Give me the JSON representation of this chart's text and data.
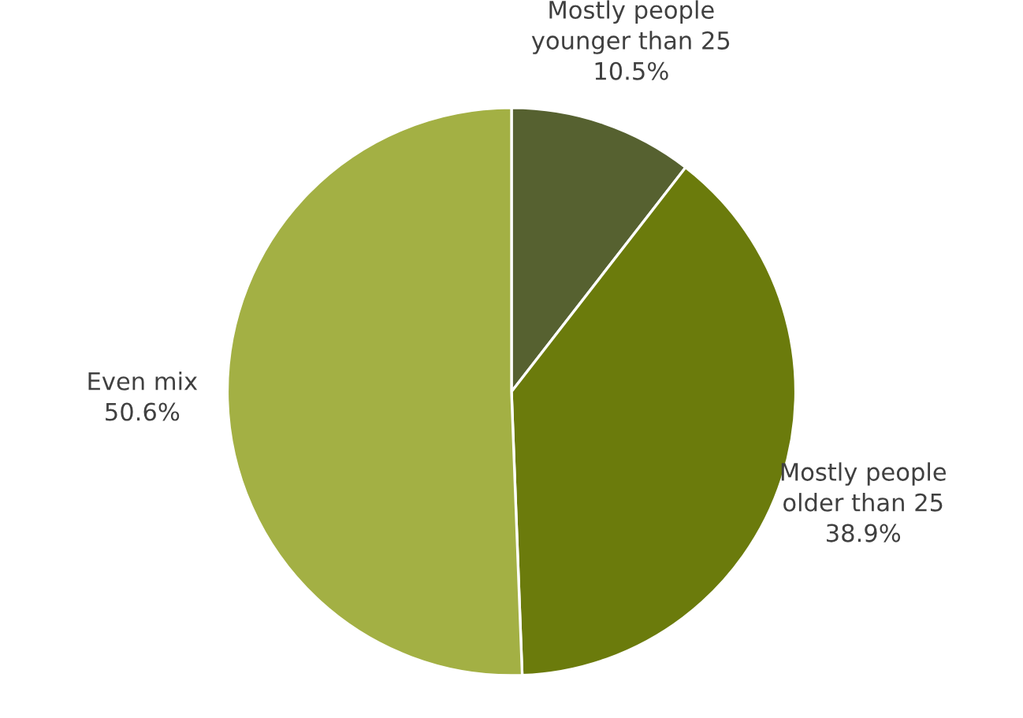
{
  "chart_data": {
    "type": "pie",
    "categories": [
      "Mostly people\nyounger than 25",
      "Mostly people\nolder than 25",
      "Even mix"
    ],
    "values": [
      10.5,
      38.9,
      50.6
    ],
    "colors": [
      "#566130",
      "#6b7b0c",
      "#a3b044"
    ],
    "value_labels": [
      "10.5%",
      "38.9%",
      "50.6%"
    ]
  }
}
